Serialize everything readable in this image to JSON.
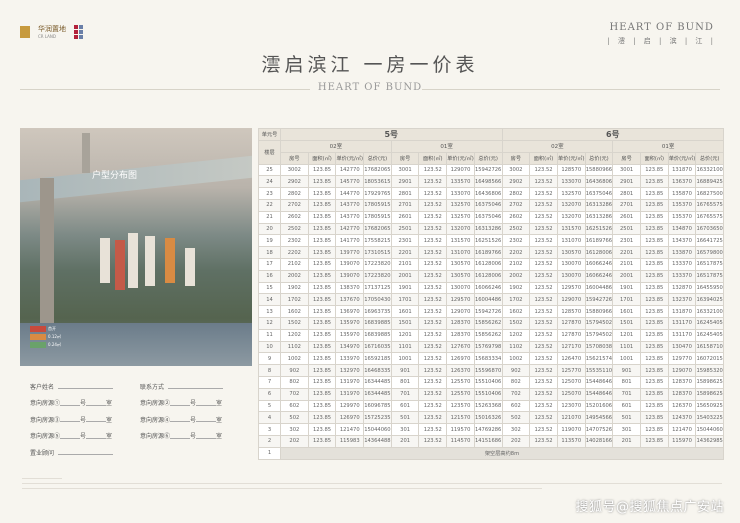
{
  "header": {
    "logo_left": "华润置地",
    "logo_left_sub": "CR LAND",
    "logo_right_brand": "HEART OF BUND",
    "logo_right_cn": "| 澐 | 启 | 滨 | 江 |",
    "title": "澐启滨江  一房一价表",
    "mid_brand": "HEART OF BUND"
  },
  "photo": {
    "label": "户型分布图",
    "legend": [
      {
        "color": "#c84a3c",
        "text": "首开"
      },
      {
        "color": "#d98b43",
        "text": "0.12㎡"
      },
      {
        "color": "#6aa26a",
        "text": "0.24㎡"
      }
    ]
  },
  "form": {
    "customer_name": "客户姓名",
    "contact": "联系方式",
    "intent": [
      "意向房源①",
      "意向房源②",
      "意向房源③",
      "意向房源④",
      "意向房源⑤",
      "意向房源⑥"
    ],
    "building": "号",
    "room": "室",
    "consultant": "置业顾问"
  },
  "table": {
    "unit_label": "单元号",
    "floor_label": "楼层",
    "buildings": [
      "5号",
      "6号"
    ],
    "rooms": [
      "02室",
      "01室",
      "02室",
      "01室"
    ],
    "cols": [
      "房号",
      "面积(㎡)",
      "单价(元/㎡)",
      "总价(元)"
    ],
    "pilot_floor": "1",
    "pilot_text": "架空层高约8m",
    "rows": [
      {
        "floor": "25",
        "cells": [
          "3002",
          "123.85",
          "142770",
          "17682065",
          "3001",
          "123.52",
          "129070",
          "15942726",
          "3002",
          "123.52",
          "128570",
          "15880966",
          "3001",
          "123.85",
          "131870",
          "16332100"
        ]
      },
      {
        "floor": "24",
        "cells": [
          "2902",
          "123.85",
          "145770",
          "18053615",
          "2901",
          "123.52",
          "133570",
          "16498566",
          "2902",
          "123.52",
          "133070",
          "16436806",
          "2901",
          "123.85",
          "136370",
          "16889425"
        ]
      },
      {
        "floor": "23",
        "cells": [
          "2802",
          "123.85",
          "144770",
          "17929765",
          "2801",
          "123.52",
          "133070",
          "16436806",
          "2802",
          "123.52",
          "132570",
          "16375046",
          "2801",
          "123.85",
          "135870",
          "16827500"
        ]
      },
      {
        "floor": "22",
        "cells": [
          "2702",
          "123.85",
          "143770",
          "17805915",
          "2701",
          "123.52",
          "132570",
          "16375046",
          "2702",
          "123.52",
          "132070",
          "16313286",
          "2701",
          "123.85",
          "135370",
          "16765575"
        ]
      },
      {
        "floor": "21",
        "cells": [
          "2602",
          "123.85",
          "143770",
          "17805915",
          "2601",
          "123.52",
          "132570",
          "16375046",
          "2602",
          "123.52",
          "132070",
          "16313286",
          "2601",
          "123.85",
          "135370",
          "16765575"
        ]
      },
      {
        "floor": "20",
        "cells": [
          "2502",
          "123.85",
          "142770",
          "17682065",
          "2501",
          "123.52",
          "132070",
          "16313286",
          "2502",
          "123.52",
          "131570",
          "16251526",
          "2501",
          "123.85",
          "134870",
          "16703650"
        ]
      },
      {
        "floor": "19",
        "cells": [
          "2302",
          "123.85",
          "141770",
          "17558215",
          "2301",
          "123.52",
          "131570",
          "16251526",
          "2302",
          "123.52",
          "131070",
          "16189766",
          "2301",
          "123.85",
          "134370",
          "16641725"
        ]
      },
      {
        "floor": "18",
        "cells": [
          "2202",
          "123.85",
          "139770",
          "17310515",
          "2201",
          "123.52",
          "131070",
          "16189766",
          "2202",
          "123.52",
          "130570",
          "16128006",
          "2201",
          "123.85",
          "133870",
          "16579800"
        ]
      },
      {
        "floor": "17",
        "cells": [
          "2102",
          "123.85",
          "139070",
          "17223820",
          "2101",
          "123.52",
          "130570",
          "16128006",
          "2102",
          "123.52",
          "130070",
          "16066246",
          "2101",
          "123.85",
          "133370",
          "16517875"
        ]
      },
      {
        "floor": "16",
        "cells": [
          "2002",
          "123.85",
          "139070",
          "17223820",
          "2001",
          "123.52",
          "130570",
          "16128006",
          "2002",
          "123.52",
          "130070",
          "16066246",
          "2001",
          "123.85",
          "133370",
          "16517875"
        ]
      },
      {
        "floor": "15",
        "cells": [
          "1902",
          "123.85",
          "138370",
          "17137125",
          "1901",
          "123.52",
          "130070",
          "16066246",
          "1902",
          "123.52",
          "129570",
          "16004486",
          "1901",
          "123.85",
          "132870",
          "16455950"
        ]
      },
      {
        "floor": "14",
        "cells": [
          "1702",
          "123.85",
          "137670",
          "17050430",
          "1701",
          "123.52",
          "129570",
          "16004486",
          "1702",
          "123.52",
          "129070",
          "15942726",
          "1701",
          "123.85",
          "132370",
          "16394025"
        ]
      },
      {
        "floor": "13",
        "cells": [
          "1602",
          "123.85",
          "136970",
          "16963735",
          "1601",
          "123.52",
          "129070",
          "15942726",
          "1602",
          "123.52",
          "128570",
          "15880966",
          "1601",
          "123.85",
          "131870",
          "16332100"
        ]
      },
      {
        "floor": "12",
        "cells": [
          "1502",
          "123.85",
          "135970",
          "16839885",
          "1501",
          "123.52",
          "128370",
          "15856262",
          "1502",
          "123.52",
          "127870",
          "15794502",
          "1501",
          "123.85",
          "131170",
          "16245405"
        ]
      },
      {
        "floor": "11",
        "cells": [
          "1202",
          "123.85",
          "135970",
          "16839885",
          "1201",
          "123.52",
          "128370",
          "15856262",
          "1202",
          "123.52",
          "127870",
          "15794502",
          "1201",
          "123.85",
          "131170",
          "16245405"
        ]
      },
      {
        "floor": "10",
        "cells": [
          "1102",
          "123.85",
          "134970",
          "16716035",
          "1101",
          "123.52",
          "127670",
          "15769798",
          "1102",
          "123.52",
          "127170",
          "15708038",
          "1101",
          "123.85",
          "130470",
          "16158710"
        ]
      },
      {
        "floor": "9",
        "cells": [
          "1002",
          "123.85",
          "133970",
          "16592185",
          "1001",
          "123.52",
          "126970",
          "15683334",
          "1002",
          "123.52",
          "126470",
          "15621574",
          "1001",
          "123.85",
          "129770",
          "16072015"
        ]
      },
      {
        "floor": "8",
        "cells": [
          "902",
          "123.85",
          "132970",
          "16468335",
          "901",
          "123.52",
          "126370",
          "15596870",
          "902",
          "123.52",
          "125770",
          "15535110",
          "901",
          "123.85",
          "129070",
          "15985320"
        ]
      },
      {
        "floor": "7",
        "cells": [
          "802",
          "123.85",
          "131970",
          "16344485",
          "801",
          "123.52",
          "125570",
          "15510406",
          "802",
          "123.52",
          "125070",
          "15448646",
          "801",
          "123.85",
          "128370",
          "15898625"
        ]
      },
      {
        "floor": "6",
        "cells": [
          "702",
          "123.85",
          "131970",
          "16344485",
          "701",
          "123.52",
          "125570",
          "15510406",
          "702",
          "123.52",
          "125070",
          "15448646",
          "701",
          "123.85",
          "128370",
          "15898625"
        ]
      },
      {
        "floor": "5",
        "cells": [
          "602",
          "123.85",
          "129970",
          "16096785",
          "601",
          "123.52",
          "123570",
          "15263368",
          "602",
          "123.52",
          "123070",
          "15201606",
          "601",
          "123.85",
          "126370",
          "15650925"
        ]
      },
      {
        "floor": "4",
        "cells": [
          "502",
          "123.85",
          "126970",
          "15725235",
          "501",
          "123.52",
          "121570",
          "15016326",
          "502",
          "123.52",
          "121070",
          "14954566",
          "501",
          "123.85",
          "124370",
          "15403225"
        ]
      },
      {
        "floor": "3",
        "cells": [
          "302",
          "123.85",
          "121470",
          "15044060",
          "301",
          "123.52",
          "119570",
          "14769286",
          "302",
          "123.52",
          "119070",
          "14707526",
          "301",
          "123.85",
          "121470",
          "15044060"
        ]
      },
      {
        "floor": "2",
        "cells": [
          "202",
          "123.85",
          "115983",
          "14364488",
          "201",
          "123.52",
          "114570",
          "14151686",
          "202",
          "123.52",
          "113570",
          "14028166",
          "201",
          "123.85",
          "115970",
          "14362985"
        ]
      }
    ]
  },
  "watermark": "搜狐号@搜狐焦点广安站"
}
